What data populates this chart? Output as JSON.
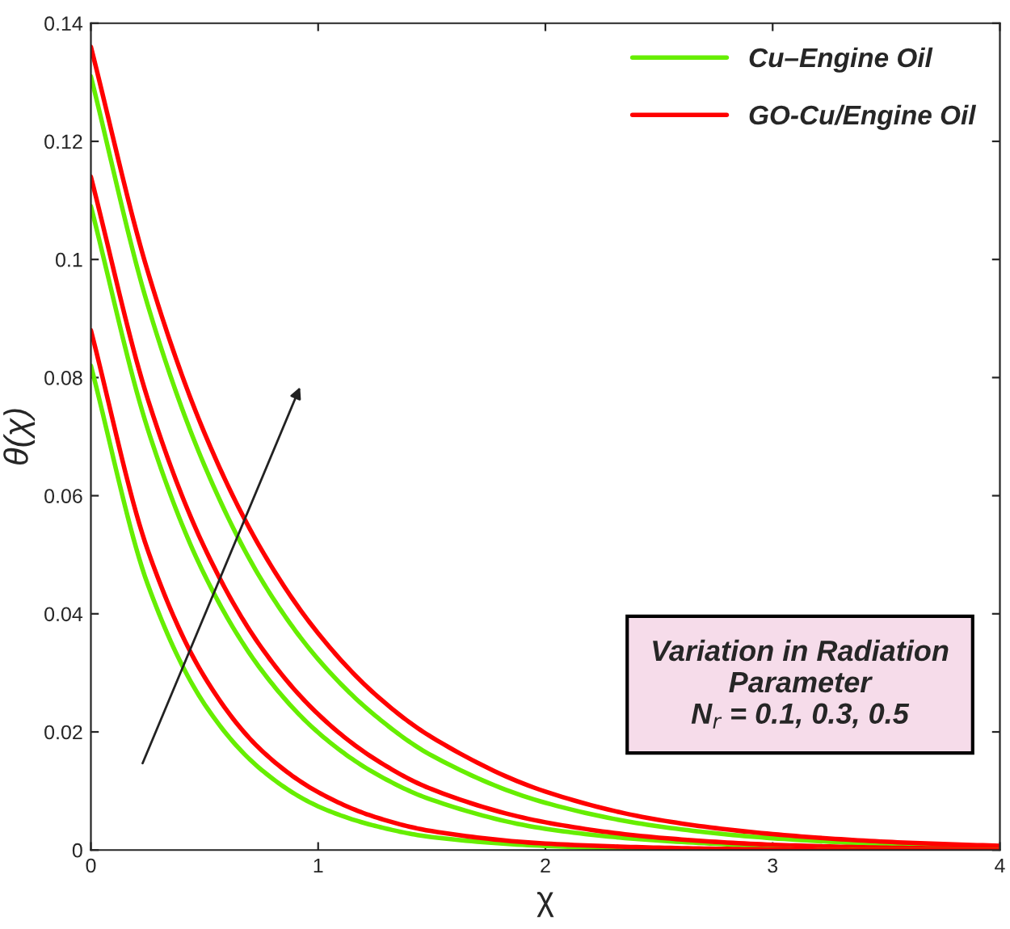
{
  "chart_data": {
    "type": "line",
    "xlabel": "χ",
    "ylabel": "θ(χ)",
    "x": [
      0,
      0.25,
      0.5,
      0.75,
      1,
      1.25,
      1.5,
      2,
      2.5,
      3,
      3.5,
      4
    ],
    "series": [
      {
        "name": "Cu–Engine Oil",
        "color": "#66ee00",
        "values": [
          0.131,
          0.0923,
          0.0651,
          0.0458,
          0.0323,
          0.0228,
          0.016,
          0.008,
          0.004,
          0.002,
          0.001,
          0.0005
        ]
      },
      {
        "name": "GO-Cu/Engine Oil",
        "color": "#ff0000",
        "values": [
          0.136,
          0.098,
          0.0706,
          0.0509,
          0.0367,
          0.0264,
          0.0191,
          0.0099,
          0.0051,
          0.0027,
          0.0014,
          0.0007
        ]
      },
      {
        "color": "#66ee00",
        "values": [
          0.109,
          0.0713,
          0.0466,
          0.0305,
          0.0199,
          0.013,
          0.0085,
          0.0036,
          0.0016,
          0.0007,
          0.0003,
          0.0001
        ]
      },
      {
        "color": "#ff0000",
        "values": [
          0.114,
          0.0764,
          0.0512,
          0.0343,
          0.023,
          0.0154,
          0.0103,
          0.0047,
          0.0021,
          0.0009,
          0.0004,
          0.0002
        ]
      },
      {
        "color": "#66ee00",
        "values": [
          0.082,
          0.045,
          0.0247,
          0.0136,
          0.0074,
          0.0041,
          0.0022,
          0.0007,
          0.0002,
          0.0001,
          0,
          0
        ]
      },
      {
        "color": "#ff0000",
        "values": [
          0.088,
          0.0508,
          0.0293,
          0.0169,
          0.0098,
          0.0056,
          0.0032,
          0.0011,
          0.0004,
          0.0001,
          0,
          0
        ]
      }
    ],
    "xlim": [
      0,
      4
    ],
    "xticks": [
      0,
      1,
      2,
      3,
      4
    ],
    "ylim": [
      0,
      0.14
    ],
    "yticks": [
      0,
      0.02,
      0.04,
      0.06,
      0.08,
      0.1,
      0.12,
      0.14
    ],
    "annotations": [
      "Variation in Radiation\nParameter\nN$_{r}$ = 0.1, 0.3, 0.5"
    ],
    "legend": "top right",
    "grid": false,
    "marker": "none",
    "line_style": "solid"
  }
}
